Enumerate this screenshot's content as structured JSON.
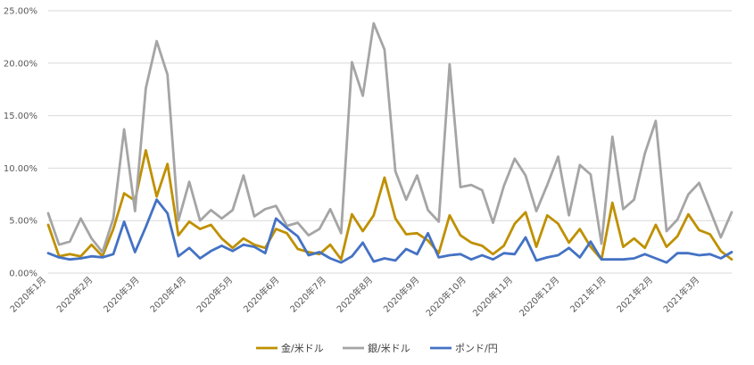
{
  "chart_data": {
    "type": "line",
    "y_ticks": [
      "0.00%",
      "5.00%",
      "10.00%",
      "15.00%",
      "20.00%",
      "25.00%"
    ],
    "ylim": [
      0,
      25
    ],
    "x_tick_labels": [
      "2020年1月",
      "2020年2月",
      "2020年3月",
      "2020年4月",
      "2020年5月",
      "2020年6月",
      "2020年7月",
      "2020年8月",
      "2020年9月",
      "2020年10月",
      "2020年11月",
      "2020年12月",
      "2021年1月",
      "2021年2月",
      "2021年3月"
    ],
    "grid": true,
    "legend_position": "bottom",
    "series": [
      {
        "name": "金/米ドル",
        "color": "#bf9000",
        "values": [
          4.6,
          1.6,
          1.8,
          1.6,
          2.7,
          1.6,
          4.2,
          7.6,
          6.9,
          11.7,
          7.3,
          10.4,
          3.6,
          4.9,
          4.2,
          4.6,
          3.3,
          2.4,
          3.3,
          2.7,
          2.4,
          4.2,
          3.8,
          2.3,
          2.0,
          1.8,
          2.7,
          1.3,
          5.6,
          4.0,
          5.5,
          9.1,
          5.2,
          3.7,
          3.8,
          3.1,
          1.9,
          5.5,
          3.6,
          2.9,
          2.6,
          1.8,
          2.6,
          4.7,
          5.8,
          2.5,
          5.5,
          4.7,
          2.9,
          4.2,
          2.5,
          1.3,
          6.7,
          2.5,
          3.3,
          2.4,
          4.6,
          2.5,
          3.5,
          5.6,
          4.1,
          3.7,
          2.1,
          1.3
        ]
      },
      {
        "name": "銀/米ドル",
        "color": "#a5a5a5",
        "values": [
          5.7,
          2.7,
          3.0,
          5.2,
          3.3,
          2.0,
          5.2,
          13.7,
          5.9,
          17.6,
          22.1,
          18.9,
          5.0,
          8.7,
          5.0,
          6.0,
          5.2,
          6.0,
          9.3,
          5.4,
          6.1,
          6.4,
          4.5,
          4.8,
          3.6,
          4.2,
          6.1,
          3.8,
          20.1,
          16.9,
          23.8,
          21.3,
          9.7,
          7.0,
          9.3,
          6.0,
          4.9,
          19.9,
          8.2,
          8.4,
          7.9,
          4.8,
          8.3,
          10.9,
          9.3,
          5.9,
          8.4,
          11.1,
          5.5,
          10.3,
          9.4,
          2.8,
          13.0,
          6.1,
          7.0,
          11.4,
          14.5,
          4.0,
          5.1,
          7.5,
          8.6,
          6.0,
          3.4,
          5.8
        ]
      },
      {
        "name": "ポンド/円",
        "color": "#4472c4",
        "values": [
          1.9,
          1.5,
          1.3,
          1.4,
          1.6,
          1.5,
          1.8,
          4.9,
          2.0,
          4.4,
          7.0,
          5.7,
          1.6,
          2.4,
          1.4,
          2.1,
          2.6,
          2.1,
          2.7,
          2.5,
          1.9,
          5.2,
          4.3,
          3.5,
          1.7,
          2.0,
          1.4,
          1.0,
          1.6,
          2.9,
          1.1,
          1.4,
          1.2,
          2.3,
          1.8,
          3.8,
          1.5,
          1.7,
          1.8,
          1.3,
          1.7,
          1.3,
          1.9,
          1.8,
          3.4,
          1.2,
          1.5,
          1.7,
          2.4,
          1.5,
          3.0,
          1.3,
          1.3,
          1.3,
          1.4,
          1.8,
          1.4,
          1.0,
          1.9,
          1.9,
          1.7,
          1.8,
          1.4,
          2.0
        ]
      }
    ]
  }
}
